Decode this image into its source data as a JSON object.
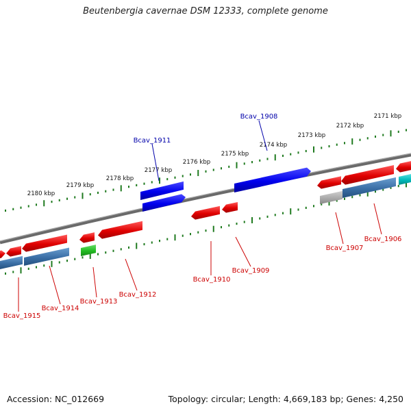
{
  "title": "Beutenbergia cavernae DSM 12333, complete genome",
  "footer": {
    "accession": "Accession: NC_012669",
    "summary": "Topology: circular; Length: 4,669,183 bp; Genes: 4,250"
  },
  "colors": {
    "backbone": "#7a7a7a",
    "tick": "#1f7a1f",
    "label_blue": "#0000aa",
    "label_red": "#cc0000",
    "gene_red": "#ee0000",
    "gene_blue": "#0000ee",
    "gene_steel": "#3a6ea5",
    "gene_green": "#22bb22",
    "gene_grey": "#aaaaaa",
    "gene_cyan": "#00bbbb"
  },
  "scale_labels": [
    "2180 kbp",
    "2179 kbp",
    "2178 kbp",
    "2177 kbp",
    "2176 kbp",
    "2175 kbp",
    "2174 kbp",
    "2173 kbp",
    "2172 kbp",
    "2171 kbp"
  ],
  "gene_labels": [
    {
      "text": "Bcav_1911",
      "color": "blue"
    },
    {
      "text": "Bcav_1908",
      "color": "blue"
    },
    {
      "text": "Bcav_1915",
      "color": "red"
    },
    {
      "text": "Bcav_1914",
      "color": "red"
    },
    {
      "text": "Bcav_1913",
      "color": "red"
    },
    {
      "text": "Bcav_1912",
      "color": "red"
    },
    {
      "text": "Bcav_1910",
      "color": "red"
    },
    {
      "text": "Bcav_1909",
      "color": "red"
    },
    {
      "text": "Bcav_1907",
      "color": "red"
    },
    {
      "text": "Bcav_1906",
      "color": "red"
    }
  ]
}
